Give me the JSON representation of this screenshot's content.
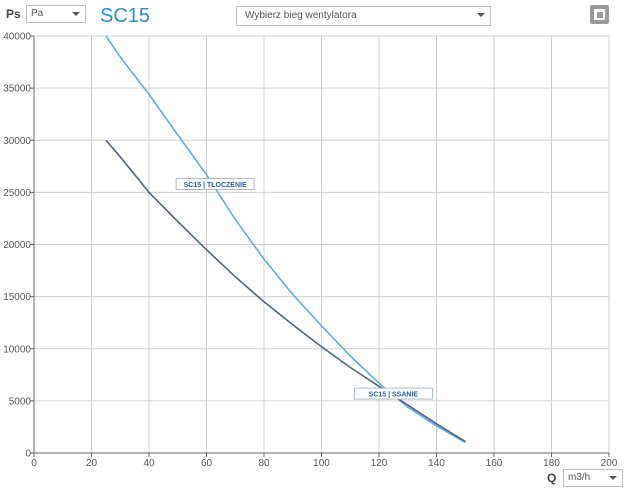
{
  "header": {
    "y_unit_label": "Ps",
    "y_unit_value": "Pa",
    "model_title": "SC15",
    "fan_speed_placeholder": "Wybierz bieg wentylatora",
    "x_unit_label": "Q",
    "x_unit_value": "m3/h",
    "window_icon": "restore-window-icon"
  },
  "colors": {
    "tloczenie": "#5aaee0",
    "ssanie": "#4e6385",
    "grid": "#d0d0d0",
    "axis": "#666666",
    "label_text": "#2a5f9e"
  },
  "chart_data": {
    "type": "line",
    "xlabel": "Q",
    "ylabel": "Ps",
    "xlim": [
      0,
      200
    ],
    "ylim": [
      0,
      40000
    ],
    "x_ticks": [
      0,
      20,
      40,
      60,
      80,
      100,
      120,
      140,
      160,
      180,
      200
    ],
    "y_ticks": [
      0,
      5000,
      10000,
      15000,
      20000,
      25000,
      30000,
      35000,
      40000
    ],
    "grid": true,
    "series": [
      {
        "name": "SC15 | TŁOCZENIE",
        "color_key": "tloczenie",
        "label_at": {
          "x": 63,
          "y": 25800
        },
        "points": [
          [
            25,
            40000
          ],
          [
            30,
            38000
          ],
          [
            40,
            34400
          ],
          [
            50,
            30500
          ],
          [
            60,
            26700
          ],
          [
            70,
            22400
          ],
          [
            80,
            18600
          ],
          [
            90,
            15200
          ],
          [
            100,
            12200
          ],
          [
            110,
            9300
          ],
          [
            120,
            6700
          ],
          [
            130,
            4400
          ],
          [
            140,
            2600
          ],
          [
            150,
            1000
          ]
        ]
      },
      {
        "name": "SC15 | SSANIE",
        "color_key": "ssanie",
        "label_at": {
          "x": 125,
          "y": 5700
        },
        "points": [
          [
            25,
            30000
          ],
          [
            30,
            28400
          ],
          [
            40,
            25000
          ],
          [
            50,
            22200
          ],
          [
            60,
            19500
          ],
          [
            70,
            16900
          ],
          [
            80,
            14500
          ],
          [
            90,
            12300
          ],
          [
            100,
            10200
          ],
          [
            110,
            8200
          ],
          [
            120,
            6400
          ],
          [
            130,
            4600
          ],
          [
            140,
            2800
          ],
          [
            150,
            1100
          ]
        ]
      }
    ]
  }
}
